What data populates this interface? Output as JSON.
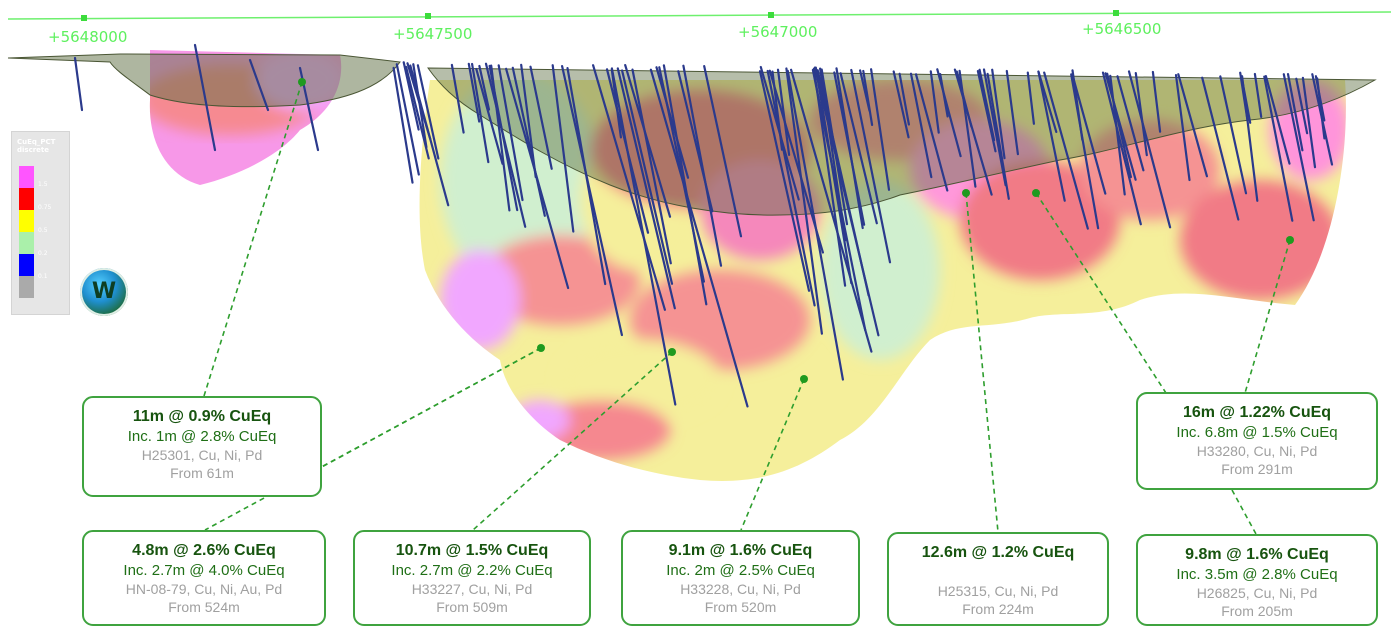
{
  "grid_labels": [
    "+5648000",
    "+5647500",
    "+5647000",
    "+5646500"
  ],
  "legend": {
    "title_line1": "CuEq_PCT",
    "title_line2": "discrete",
    "bins": [
      {
        "label": "1.5",
        "color": "#ff55ff"
      },
      {
        "label": "0.75",
        "color": "#ff0000"
      },
      {
        "label": "0.5",
        "color": "#ffff00"
      },
      {
        "label": "0.2",
        "color": "#aaf0aa"
      },
      {
        "label": "0.1",
        "color": "#0000ff"
      },
      {
        "label": "",
        "color": "#aaaaaa"
      }
    ]
  },
  "badge": {
    "letter": "W"
  },
  "colors": {
    "callout_border": "#3fa33f",
    "leader_line": "#2e9e2e",
    "drillhole": "#2b3a8c"
  },
  "callouts": [
    {
      "headline": "11m @ 0.9% CuEq",
      "inclusion": "Inc. 1m @ 2.8% CuEq",
      "hole": "H25301, Cu, Ni, Pd",
      "from": "From 61m"
    },
    {
      "headline": "4.8m @ 2.6% CuEq",
      "inclusion": "Inc. 2.7m @ 4.0% CuEq",
      "hole": "HN-08-79, Cu, Ni, Au, Pd",
      "from": "From 524m"
    },
    {
      "headline": "10.7m @ 1.5% CuEq",
      "inclusion": "Inc. 2.7m @ 2.2% CuEq",
      "hole": "H33227, Cu, Ni, Pd",
      "from": "From 509m"
    },
    {
      "headline": "9.1m @ 1.6% CuEq",
      "inclusion": "Inc. 2m @ 2.5% CuEq",
      "hole": "H33228, Cu, Ni, Pd",
      "from": "From 520m"
    },
    {
      "headline": "12.6m @ 1.2% CuEq",
      "inclusion": "",
      "hole": "H25315, Cu, Ni, Pd",
      "from": "From 224m"
    },
    {
      "headline": "16m @ 1.22% CuEq",
      "inclusion": "Inc. 6.8m @ 1.5% CuEq",
      "hole": "H33280, Cu, Ni, Pd",
      "from": "From 291m"
    },
    {
      "headline": "9.8m @ 1.6% CuEq",
      "inclusion": "Inc. 3.5m @ 2.8% CuEq",
      "hole": "H26825, Cu, Ni, Pd",
      "from": "From 205m"
    }
  ]
}
